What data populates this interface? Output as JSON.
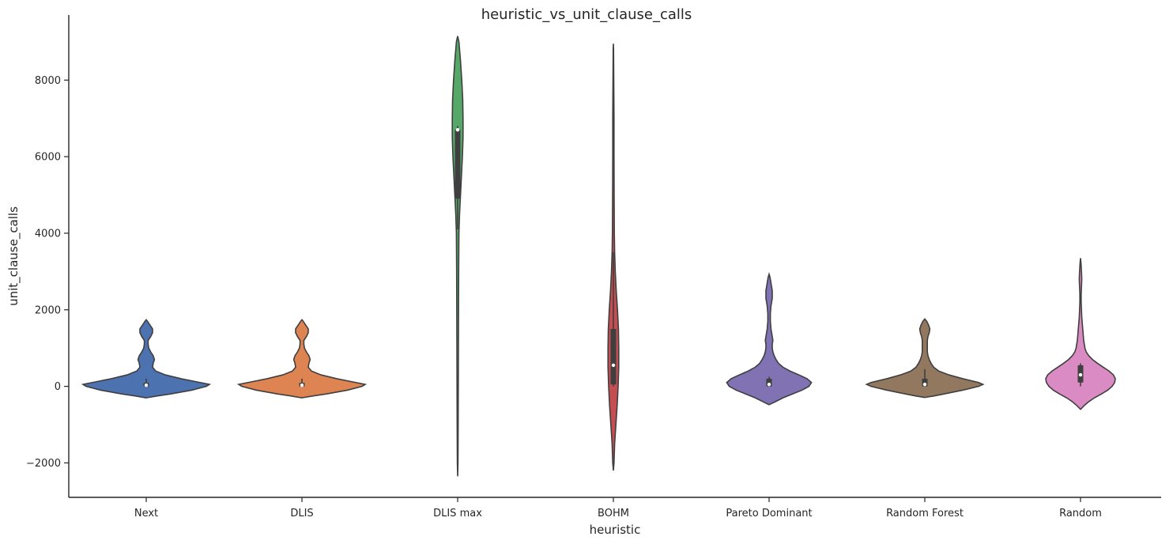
{
  "chart_data": {
    "type": "violin",
    "title": "heuristic_vs_unit_clause_calls",
    "xlabel": "heuristic",
    "ylabel": "unit_clause_calls",
    "ylim": [
      -2900,
      9700
    ],
    "yticks": [
      -2000,
      0,
      2000,
      4000,
      6000,
      8000
    ],
    "ytick_labels": [
      "−2000",
      "0",
      "2000",
      "4000",
      "6000",
      "8000"
    ],
    "grid": false,
    "categories": [
      "Next",
      "DLIS",
      "DLIS max",
      "BOHM",
      "Pareto Dominant",
      "Random Forest",
      "Random"
    ],
    "series": [
      {
        "color": "#4c72b0",
        "q1": 0,
        "median": 30,
        "q3": 90,
        "whisker_low": 0,
        "whisker_high": 200,
        "profile": [
          [
            -300,
            0.0
          ],
          [
            -250,
            0.18
          ],
          [
            -200,
            0.38
          ],
          [
            -100,
            0.72
          ],
          [
            0,
            0.95
          ],
          [
            50,
            1.0
          ],
          [
            100,
            0.85
          ],
          [
            200,
            0.55
          ],
          [
            300,
            0.3
          ],
          [
            400,
            0.15
          ],
          [
            500,
            0.1
          ],
          [
            600,
            0.11
          ],
          [
            700,
            0.13
          ],
          [
            800,
            0.11
          ],
          [
            900,
            0.07
          ],
          [
            1000,
            0.04
          ],
          [
            1100,
            0.03
          ],
          [
            1200,
            0.03
          ],
          [
            1300,
            0.07
          ],
          [
            1400,
            0.1
          ],
          [
            1500,
            0.1
          ],
          [
            1600,
            0.06
          ],
          [
            1700,
            0.02
          ],
          [
            1740,
            0.0
          ]
        ]
      },
      {
        "color": "#dd8452",
        "q1": 0,
        "median": 30,
        "q3": 90,
        "whisker_low": 0,
        "whisker_high": 200,
        "profile": [
          [
            -300,
            0.0
          ],
          [
            -250,
            0.18
          ],
          [
            -200,
            0.38
          ],
          [
            -100,
            0.72
          ],
          [
            0,
            0.95
          ],
          [
            50,
            1.0
          ],
          [
            100,
            0.85
          ],
          [
            200,
            0.55
          ],
          [
            300,
            0.3
          ],
          [
            400,
            0.15
          ],
          [
            500,
            0.1
          ],
          [
            600,
            0.11
          ],
          [
            700,
            0.13
          ],
          [
            800,
            0.11
          ],
          [
            900,
            0.07
          ],
          [
            1000,
            0.04
          ],
          [
            1100,
            0.03
          ],
          [
            1200,
            0.03
          ],
          [
            1300,
            0.07
          ],
          [
            1400,
            0.1
          ],
          [
            1500,
            0.1
          ],
          [
            1600,
            0.06
          ],
          [
            1700,
            0.02
          ],
          [
            1740,
            0.0
          ]
        ]
      },
      {
        "color": "#55a868",
        "q1": 4900,
        "median": 6700,
        "q3": 6700,
        "whisker_low": 4100,
        "whisker_high": 6800,
        "profile": [
          [
            -2350,
            0.0
          ],
          [
            -2000,
            0.005
          ],
          [
            -1000,
            0.008
          ],
          [
            0,
            0.01
          ],
          [
            1000,
            0.012
          ],
          [
            2000,
            0.014
          ],
          [
            3000,
            0.016
          ],
          [
            4000,
            0.02
          ],
          [
            4500,
            0.03
          ],
          [
            5000,
            0.045
          ],
          [
            5500,
            0.06
          ],
          [
            6000,
            0.075
          ],
          [
            6500,
            0.085
          ],
          [
            7000,
            0.085
          ],
          [
            7500,
            0.08
          ],
          [
            8000,
            0.065
          ],
          [
            8500,
            0.045
          ],
          [
            8800,
            0.03
          ],
          [
            9000,
            0.02
          ],
          [
            9150,
            0.0
          ]
        ]
      },
      {
        "color": "#c44e52",
        "q1": 50,
        "median": 550,
        "q3": 1500,
        "whisker_low": 0,
        "whisker_high": 3500,
        "profile": [
          [
            -2200,
            0.0
          ],
          [
            -2000,
            0.01
          ],
          [
            -1500,
            0.02
          ],
          [
            -1000,
            0.04
          ],
          [
            -500,
            0.06
          ],
          [
            0,
            0.075
          ],
          [
            500,
            0.085
          ],
          [
            1000,
            0.085
          ],
          [
            1500,
            0.08
          ],
          [
            2000,
            0.065
          ],
          [
            2500,
            0.045
          ],
          [
            3000,
            0.03
          ],
          [
            3500,
            0.02
          ],
          [
            4000,
            0.015
          ],
          [
            5000,
            0.012
          ],
          [
            6000,
            0.01
          ],
          [
            7000,
            0.01
          ],
          [
            8000,
            0.006
          ],
          [
            8800,
            0.003
          ],
          [
            8950,
            0.0
          ]
        ]
      },
      {
        "color": "#8172b3",
        "q1": 0,
        "median": 50,
        "q3": 200,
        "whisker_low": 0,
        "whisker_high": 250,
        "profile": [
          [
            -480,
            0.0
          ],
          [
            -400,
            0.1
          ],
          [
            -300,
            0.22
          ],
          [
            -200,
            0.37
          ],
          [
            -100,
            0.52
          ],
          [
            0,
            0.63
          ],
          [
            100,
            0.67
          ],
          [
            200,
            0.6
          ],
          [
            300,
            0.47
          ],
          [
            400,
            0.33
          ],
          [
            500,
            0.22
          ],
          [
            600,
            0.15
          ],
          [
            700,
            0.11
          ],
          [
            800,
            0.08
          ],
          [
            900,
            0.06
          ],
          [
            1000,
            0.05
          ],
          [
            1100,
            0.05
          ],
          [
            1200,
            0.06
          ],
          [
            1300,
            0.05
          ],
          [
            1500,
            0.03
          ],
          [
            1700,
            0.02
          ],
          [
            1900,
            0.02
          ],
          [
            2100,
            0.03
          ],
          [
            2300,
            0.05
          ],
          [
            2500,
            0.05
          ],
          [
            2700,
            0.03
          ],
          [
            2850,
            0.015
          ],
          [
            2930,
            0.0
          ]
        ]
      },
      {
        "color": "#937860",
        "q1": 0,
        "median": 50,
        "q3": 200,
        "whisker_low": 0,
        "whisker_high": 450,
        "profile": [
          [
            -290,
            0.0
          ],
          [
            -250,
            0.15
          ],
          [
            -200,
            0.3
          ],
          [
            -100,
            0.6
          ],
          [
            0,
            0.85
          ],
          [
            50,
            0.92
          ],
          [
            100,
            0.85
          ],
          [
            200,
            0.6
          ],
          [
            300,
            0.38
          ],
          [
            400,
            0.22
          ],
          [
            500,
            0.14
          ],
          [
            600,
            0.1
          ],
          [
            700,
            0.07
          ],
          [
            800,
            0.05
          ],
          [
            900,
            0.04
          ],
          [
            1000,
            0.04
          ],
          [
            1100,
            0.04
          ],
          [
            1200,
            0.04
          ],
          [
            1300,
            0.05
          ],
          [
            1400,
            0.07
          ],
          [
            1500,
            0.08
          ],
          [
            1600,
            0.06
          ],
          [
            1700,
            0.03
          ],
          [
            1760,
            0.0
          ]
        ]
      },
      {
        "color": "#da8bc3",
        "q1": 100,
        "median": 300,
        "q3": 550,
        "whisker_low": 0,
        "whisker_high": 600,
        "profile": [
          [
            -600,
            0.0
          ],
          [
            -500,
            0.06
          ],
          [
            -400,
            0.13
          ],
          [
            -300,
            0.22
          ],
          [
            -200,
            0.33
          ],
          [
            -100,
            0.43
          ],
          [
            0,
            0.5
          ],
          [
            100,
            0.54
          ],
          [
            200,
            0.55
          ],
          [
            300,
            0.52
          ],
          [
            400,
            0.45
          ],
          [
            500,
            0.36
          ],
          [
            600,
            0.27
          ],
          [
            700,
            0.19
          ],
          [
            800,
            0.13
          ],
          [
            900,
            0.09
          ],
          [
            1000,
            0.07
          ],
          [
            1200,
            0.05
          ],
          [
            1400,
            0.04
          ],
          [
            1600,
            0.03
          ],
          [
            1800,
            0.02
          ],
          [
            2000,
            0.015
          ],
          [
            2200,
            0.01
          ],
          [
            2400,
            0.01
          ],
          [
            2600,
            0.015
          ],
          [
            2800,
            0.02
          ],
          [
            3000,
            0.015
          ],
          [
            3200,
            0.008
          ],
          [
            3350,
            0.0
          ]
        ]
      }
    ]
  }
}
